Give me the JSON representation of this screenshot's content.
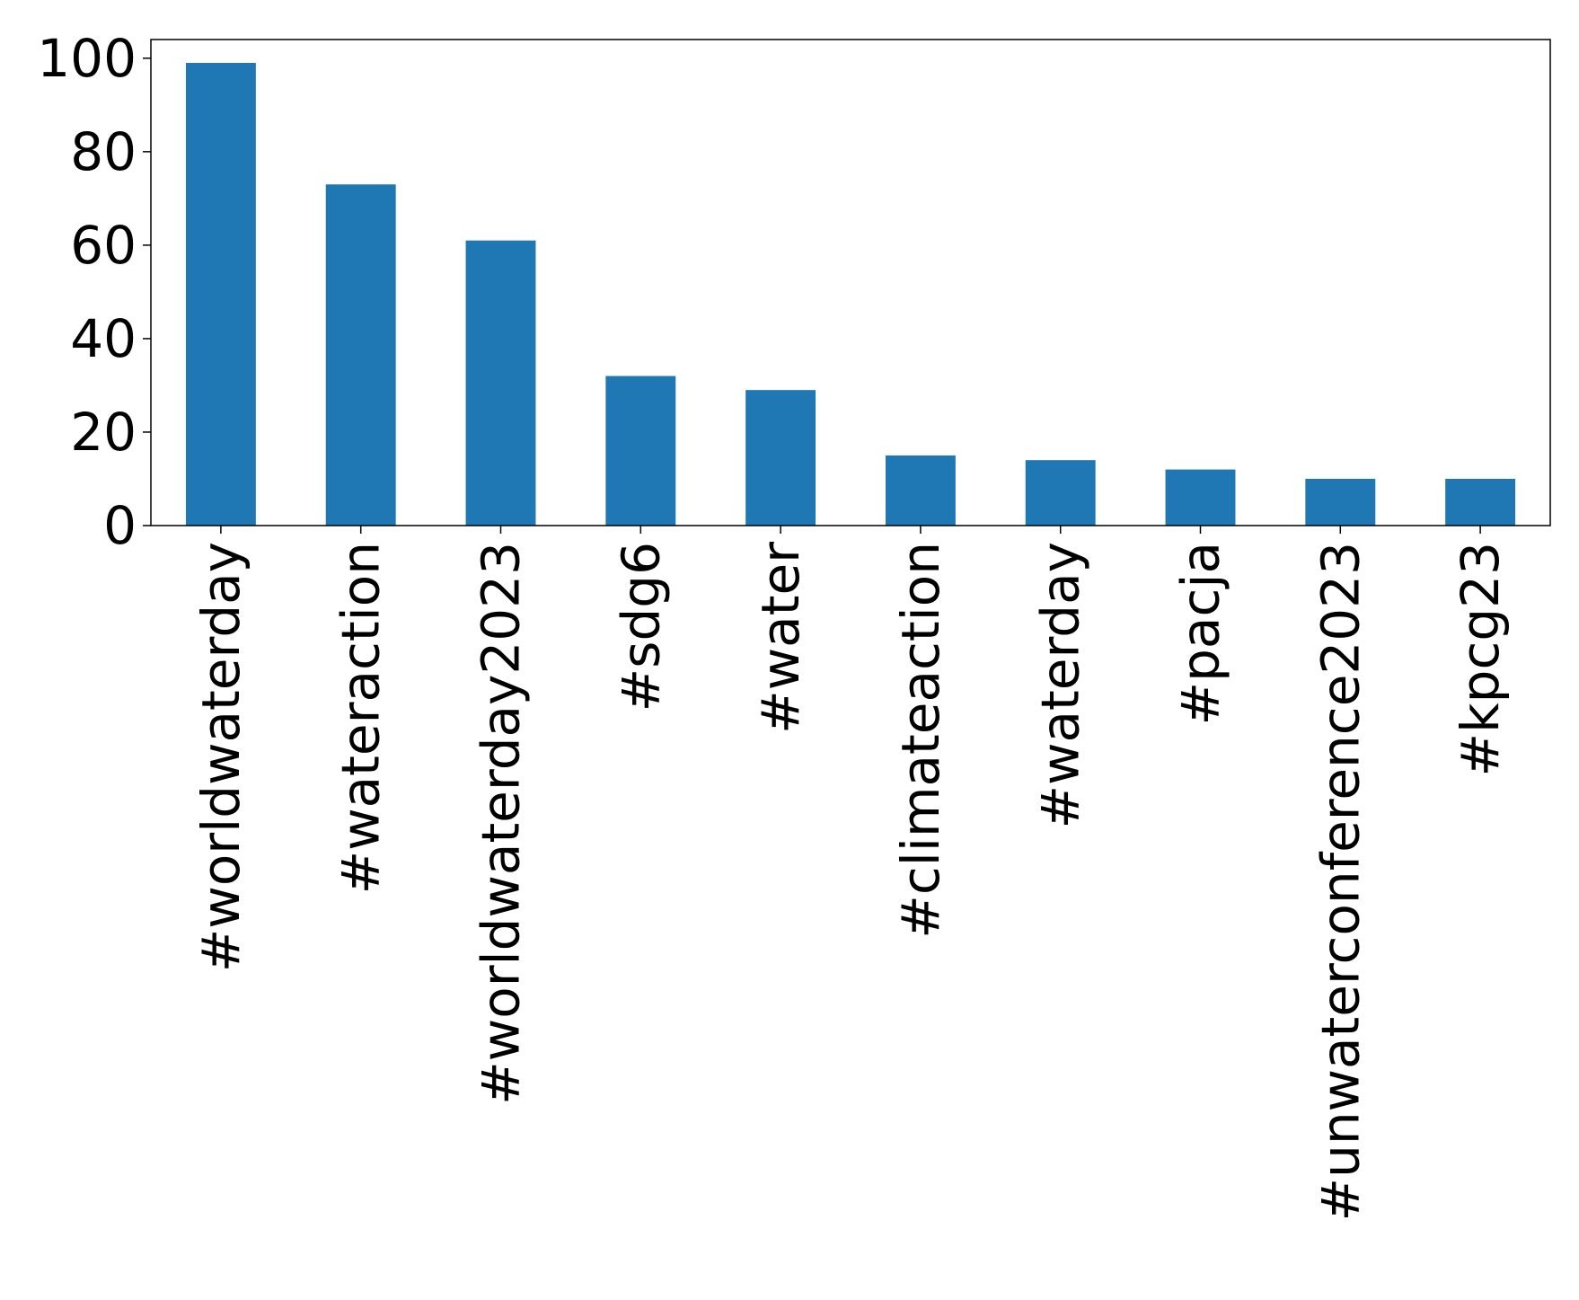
{
  "chart_data": {
    "type": "bar",
    "title": "",
    "xlabel": "",
    "ylabel": "",
    "categories": [
      "#worldwaterday",
      "#wateraction",
      "#worldwaterday2023",
      "#sdg6",
      "#water",
      "#climateaction",
      "#waterday",
      "#pacja",
      "#unwaterconference2023",
      "#kpcg23"
    ],
    "values": [
      99,
      73,
      61,
      32,
      29,
      15,
      14,
      12,
      10,
      10
    ],
    "ylim": [
      0,
      104
    ],
    "yticks": [
      0,
      20,
      40,
      60,
      80,
      100
    ],
    "bar_color": "#1f77b4",
    "grid": false,
    "legend": "none"
  }
}
